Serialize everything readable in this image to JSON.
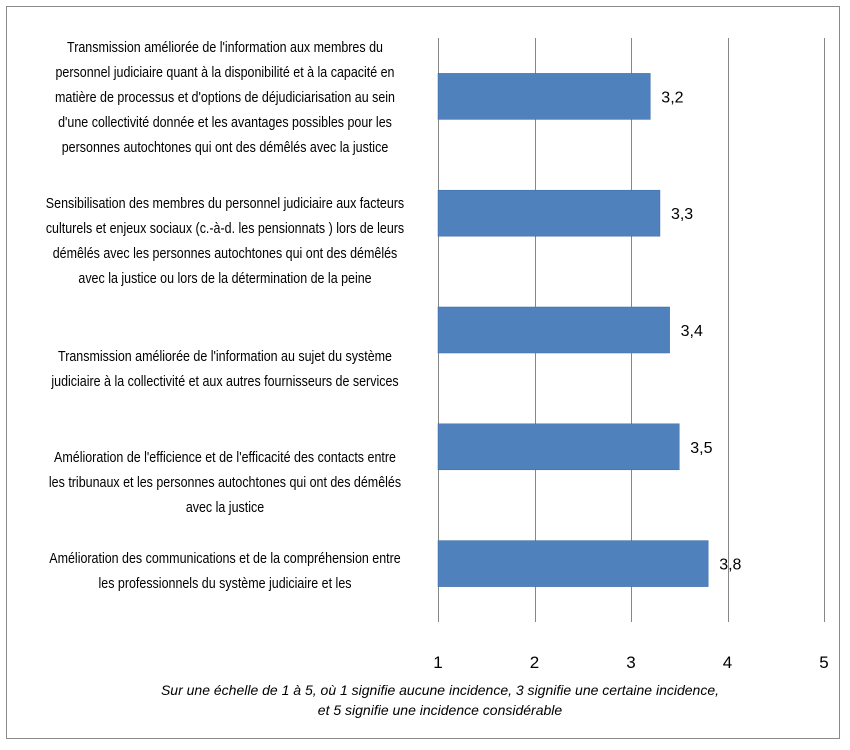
{
  "chart_data": {
    "type": "bar",
    "orientation": "horizontal",
    "categories": [
      "Transmission améliorée de l'information aux  membres du personnel judiciaire quant à la disponibilité et à la capacité en matière de processus et d'options de déjudiciarisation au sein d'une collectivité donnée et les avantages possibles pour les personnes autochtones qui ont des démêlés avec la justice",
      "Sensibilisation des membres du personnel judiciaire aux facteurs culturels et enjeux sociaux (c.-à-d. les pensionnats ) lors de leurs démêlés avec les personnes autochtones qui ont des démêlés avec la justice ou lors de la détermination de la peine",
      "Transmission améliorée de l'information au sujet du système judiciaire à la collectivité et aux autres fournisseurs de services",
      "Amélioration de l'efficience et de l'efficacité des contacts entre les tribunaux et les personnes autochtones qui ont des démêlés avec la justice",
      "Amélioration des communications et de la compréhension entre les professionnels du système judiciaire et les"
    ],
    "values": [
      3.2,
      3.3,
      3.4,
      3.5,
      3.8
    ],
    "value_labels": [
      "3,2",
      "3,3",
      "3,4",
      "3,5",
      "3,8"
    ],
    "xlim": [
      1,
      5
    ],
    "x_ticks": [
      "1",
      "2",
      "3",
      "4",
      "5"
    ],
    "grid": true,
    "bar_color": "#4f81bd",
    "grid_color": "#868686",
    "footnote": [
      "Sur une échelle de 1 à 5, où 1 signifie aucune incidence, 3 signifie une certaine incidence,",
      "et 5 signifie une incidence considérable"
    ]
  }
}
